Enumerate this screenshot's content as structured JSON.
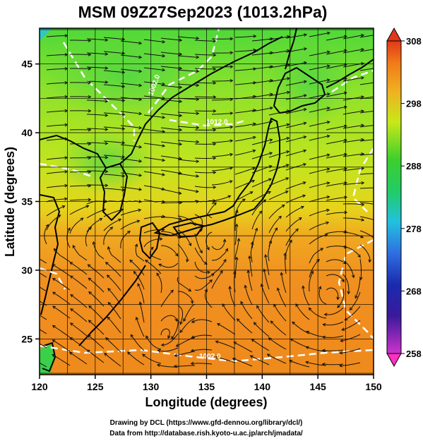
{
  "title": "MSM 09Z27Sep2023 (1013.2hPa)",
  "map": {
    "xlabel": "Longitude (degrees)",
    "ylabel": "Latitude  (degrees)",
    "lon_range": [
      120,
      150
    ],
    "lat_range": [
      22.4,
      47.6
    ],
    "lon_ticks": [
      "120",
      "125",
      "130",
      "135",
      "140",
      "145",
      "150"
    ],
    "lat_ticks": [
      "25",
      "30",
      "35",
      "40",
      "45"
    ],
    "grid": true,
    "field": "temperature (K) shaded, wind streamlines, pressure contours",
    "contour_labels": [
      {
        "text": "1012.0",
        "lon": 136.5,
        "lat": 41.5
      },
      {
        "text": "1002.0",
        "lon": 130.5,
        "lat": 43.0
      },
      {
        "text": "1002.0",
        "lon": 136.2,
        "lat": 24.0
      }
    ]
  },
  "colorbar": {
    "ticks": [
      "308",
      "298",
      "288",
      "278",
      "268",
      "258"
    ],
    "range": [
      258,
      308
    ],
    "colors": [
      "#cc33cc",
      "#1a1aa6",
      "#2b55e0",
      "#22b6e8",
      "#23cc4a",
      "#c8e81a",
      "#f0c020",
      "#f08a1a",
      "#e03818"
    ]
  },
  "credits": [
    "Drawing by DCL (https://www.gfd-dennou.org/library/dcl/)",
    "Data from http://database.rish.kyoto-u.ac.jp/arch/jmadata/"
  ]
}
